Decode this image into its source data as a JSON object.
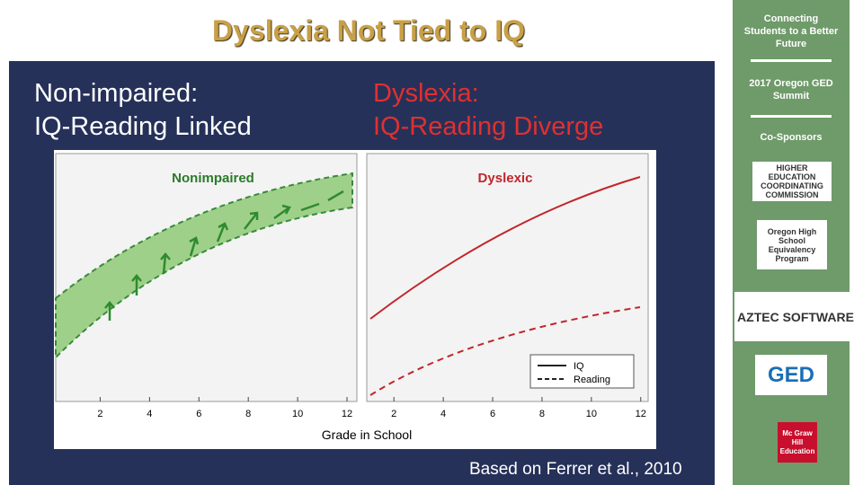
{
  "title": "Dyslexia Not Tied to IQ",
  "heading_left": [
    "Non-impaired:",
    "IQ-Reading Linked"
  ],
  "heading_right": [
    "Dyslexia:",
    "IQ-Reading Diverge"
  ],
  "panels": [
    {
      "title": "Nonimpaired",
      "xlim": [
        0.2,
        12.4
      ],
      "xticks": [
        2,
        4,
        6,
        8,
        10,
        12
      ]
    },
    {
      "title": "Dyslexic",
      "xlim": [
        0.9,
        12.3
      ],
      "xticks": [
        2,
        4,
        6,
        8,
        10,
        12
      ]
    }
  ],
  "legend": [
    "IQ",
    "Reading"
  ],
  "x_label": "Grade in School",
  "citation": "Based on Ferrer et al., 2010",
  "sidebar": {
    "tagline": "Connecting Students to a Better Future",
    "event": "2017 Oregon GED Summit",
    "cosponsors": "Co-Sponsors",
    "logos": [
      "HIGHER EDUCATION COORDINATING COMMISSION",
      "Oregon High School Equivalency Program",
      "AZTEC SOFTWARE",
      "GED",
      "Mc Graw Hill Education"
    ]
  }
}
